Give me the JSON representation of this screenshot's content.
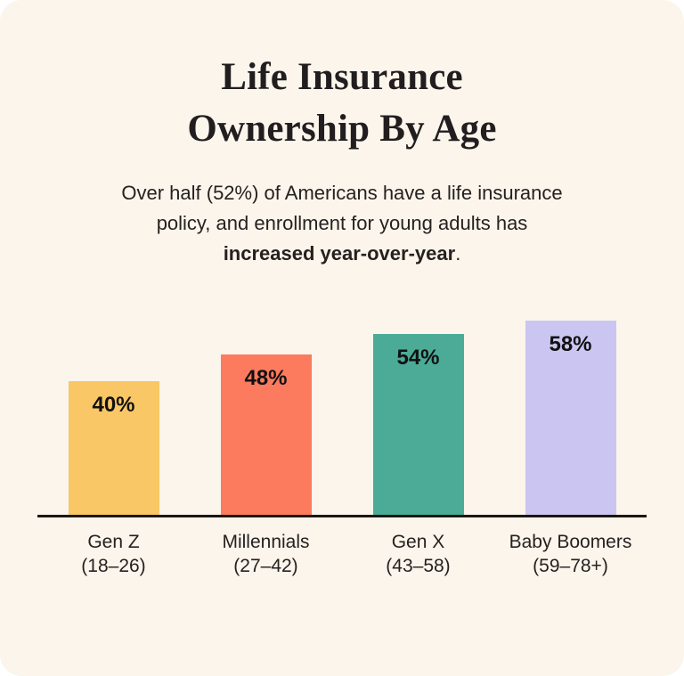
{
  "card": {
    "title_line1": "Life Insurance",
    "title_line2": "Ownership By Age",
    "subtitle_line1": "Over half (52%) of Americans have a life insurance",
    "subtitle_line2": "policy, and enrollment for young adults has",
    "subtitle_bold": "increased year-over-year",
    "subtitle_period": "."
  },
  "colors": {
    "background": "#FBF5EC",
    "title_text": "#221E1F",
    "body_text": "#26211F",
    "axis_line": "#1B1713",
    "value_label_text": "#111111"
  },
  "chart_data": {
    "type": "bar",
    "title": "Life Insurance Ownership By Age",
    "subtitle": "Over half (52%) of Americans have a life insurance policy, and enrollment for young adults has increased year-over-year.",
    "categories": [
      "Gen Z",
      "Millennials",
      "Gen X",
      "Baby Boomers"
    ],
    "age_ranges": [
      "(18–26)",
      "(27–42)",
      "(43–58)",
      "(59–78+)"
    ],
    "values": [
      40,
      48,
      54,
      58
    ],
    "value_labels": [
      "40%",
      "48%",
      "54%",
      "58%"
    ],
    "unit": "%",
    "xlabel": "",
    "ylabel": "",
    "ylim": [
      0,
      62
    ],
    "bar_colors": [
      "#F9C765",
      "#FC7B5F",
      "#4BAB97",
      "#CBC5F1"
    ],
    "grid": false,
    "legend": false,
    "value_label_position": "inside-top"
  }
}
